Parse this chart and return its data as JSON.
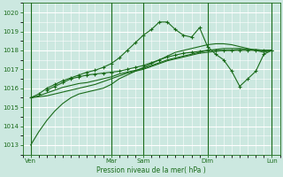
{
  "bg_color": "#cce8e0",
  "grid_color": "#ffffff",
  "line_color": "#1a6b1a",
  "text_color": "#1a6b1a",
  "xlabel": "Pression niveau de la mer( hPa )",
  "ylim": [
    1012.5,
    1020.5
  ],
  "xlim": [
    0,
    16
  ],
  "yticks": [
    1013,
    1014,
    1015,
    1016,
    1017,
    1018,
    1019,
    1020
  ],
  "day_labels": [
    "Ven",
    "",
    "Mar",
    "Sam",
    "",
    "Dim",
    "",
    "Lun"
  ],
  "vline_positions": [
    0.5,
    5.5,
    7.5,
    11.5,
    15.5
  ],
  "line1_x": [
    0.5,
    1,
    1.5,
    2,
    2.5,
    3,
    3.5,
    4,
    4.5,
    5,
    5.5,
    6,
    6.5,
    7,
    7.5,
    8,
    8.5,
    9,
    9.5,
    10,
    10.5,
    11,
    11.5,
    12,
    12.5,
    13,
    13.5,
    14,
    14.5,
    15,
    15.5
  ],
  "line1_y": [
    1013.0,
    1013.7,
    1014.3,
    1014.8,
    1015.2,
    1015.5,
    1015.7,
    1015.8,
    1015.9,
    1016.0,
    1016.2,
    1016.5,
    1016.7,
    1016.9,
    1017.1,
    1017.3,
    1017.5,
    1017.7,
    1017.9,
    1018.0,
    1018.1,
    1018.2,
    1018.3,
    1018.35,
    1018.35,
    1018.3,
    1018.2,
    1018.1,
    1018.0,
    1017.9,
    1018.0
  ],
  "line2_x": [
    0.5,
    1,
    1.5,
    2,
    2.5,
    3,
    3.5,
    4,
    4.5,
    5,
    5.5,
    6,
    6.5,
    7,
    7.5,
    8,
    8.5,
    9,
    9.5,
    10,
    10.5,
    11,
    11.5,
    12,
    12.5,
    13,
    13.5,
    14,
    14.5,
    15,
    15.5
  ],
  "line2_y": [
    1015.5,
    1015.55,
    1015.6,
    1015.7,
    1015.8,
    1015.9,
    1016.0,
    1016.1,
    1016.2,
    1016.35,
    1016.5,
    1016.65,
    1016.8,
    1016.9,
    1017.0,
    1017.15,
    1017.3,
    1017.45,
    1017.55,
    1017.65,
    1017.75,
    1017.85,
    1017.9,
    1017.95,
    1018.0,
    1018.0,
    1018.05,
    1018.05,
    1018.05,
    1018.0,
    1018.0
  ],
  "line3_x": [
    0.5,
    1,
    1.5,
    2,
    2.5,
    3,
    3.5,
    4,
    4.5,
    5,
    5.5,
    6,
    6.5,
    7,
    7.5,
    8,
    8.5,
    9,
    9.5,
    10,
    10.5,
    11,
    11.5,
    12,
    12.5,
    13,
    13.5,
    14,
    14.5,
    15,
    15.5
  ],
  "line3_y": [
    1015.5,
    1015.6,
    1015.75,
    1015.9,
    1016.05,
    1016.15,
    1016.25,
    1016.3,
    1016.4,
    1016.5,
    1016.6,
    1016.75,
    1016.85,
    1016.95,
    1017.05,
    1017.2,
    1017.35,
    1017.5,
    1017.6,
    1017.7,
    1017.8,
    1017.9,
    1018.0,
    1018.05,
    1018.1,
    1018.1,
    1018.1,
    1018.05,
    1018.0,
    1018.0,
    1018.0
  ],
  "line4_x": [
    0.5,
    1,
    1.5,
    2,
    2.5,
    3,
    3.5,
    4,
    4.5,
    5,
    5.5,
    6,
    6.5,
    7,
    7.5,
    8,
    8.5,
    9,
    9.5,
    10,
    10.5,
    11,
    11.5,
    12,
    12.5,
    13,
    13.5,
    14,
    14.5,
    15,
    15.5
  ],
  "line4_y": [
    1015.5,
    1015.7,
    1016.0,
    1016.2,
    1016.4,
    1016.55,
    1016.7,
    1016.85,
    1016.95,
    1017.1,
    1017.3,
    1017.6,
    1018.0,
    1018.4,
    1018.8,
    1019.1,
    1019.5,
    1019.5,
    1019.1,
    1018.8,
    1018.7,
    1019.2,
    1018.2,
    1017.8,
    1017.5,
    1016.9,
    1016.1,
    1016.5,
    1016.9,
    1017.8,
    1018.0
  ],
  "line5_x": [
    1.5,
    2,
    2.5,
    3,
    3.5,
    4,
    4.5,
    5,
    5.5,
    6,
    6.5,
    7,
    7.5,
    8,
    8.5,
    9,
    9.5,
    10,
    10.5,
    11,
    11.5,
    12,
    12.5,
    13,
    13.5,
    14,
    14.5,
    15,
    15.5
  ],
  "line5_y": [
    1015.9,
    1016.1,
    1016.3,
    1016.5,
    1016.6,
    1016.7,
    1016.75,
    1016.8,
    1016.85,
    1016.9,
    1017.0,
    1017.1,
    1017.2,
    1017.35,
    1017.5,
    1017.65,
    1017.75,
    1017.85,
    1017.9,
    1017.95,
    1018.0,
    1018.0,
    1018.0,
    1018.0,
    1018.0,
    1018.0,
    1018.0,
    1018.0,
    1018.0
  ]
}
